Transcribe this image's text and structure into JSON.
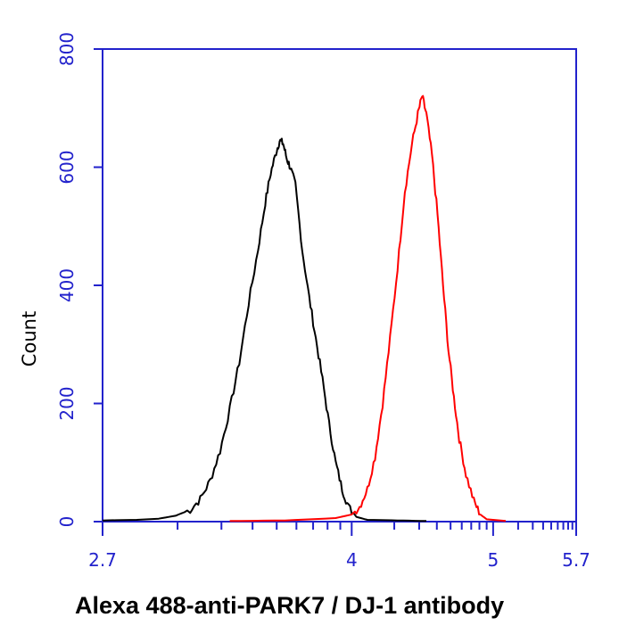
{
  "chart_data": {
    "type": "line",
    "title": "",
    "xlabel": "Alexa 488-anti-PARK7 / DJ-1 antibody",
    "ylabel": "Count",
    "x_scale": "log",
    "xlim": [
      2.7,
      5.7
    ],
    "ylim": [
      0,
      800
    ],
    "x_ticks": [
      {
        "value": 2.7,
        "label": "2.7"
      },
      {
        "value": 4,
        "label": "4"
      },
      {
        "value": 5,
        "label": "5"
      },
      {
        "value": 5.7,
        "label": "5.7"
      }
    ],
    "y_ticks": [
      0,
      200,
      400,
      600,
      800
    ],
    "grid": false,
    "legend": "none",
    "axis_color": "#2222cc",
    "series": [
      {
        "color": "#000000",
        "points": [
          [
            2.7,
            2
          ],
          [
            2.85,
            3
          ],
          [
            2.95,
            5
          ],
          [
            3.03,
            10
          ],
          [
            3.1,
            20
          ],
          [
            3.15,
            38
          ],
          [
            3.2,
            70
          ],
          [
            3.25,
            120
          ],
          [
            3.3,
            190
          ],
          [
            3.35,
            270
          ],
          [
            3.4,
            370
          ],
          [
            3.45,
            460
          ],
          [
            3.49,
            540
          ],
          [
            3.52,
            590
          ],
          [
            3.55,
            625
          ],
          [
            3.57,
            645
          ],
          [
            3.59,
            640
          ],
          [
            3.61,
            615
          ],
          [
            3.63,
            600
          ],
          [
            3.66,
            570
          ],
          [
            3.7,
            460
          ],
          [
            3.74,
            380
          ],
          [
            3.78,
            310
          ],
          [
            3.82,
            240
          ],
          [
            3.86,
            165
          ],
          [
            3.9,
            100
          ],
          [
            3.94,
            55
          ],
          [
            3.98,
            25
          ],
          [
            4.03,
            8
          ],
          [
            4.1,
            3
          ],
          [
            4.3,
            2
          ],
          [
            4.5,
            1
          ]
        ]
      },
      {
        "color": "#ff0000",
        "points": [
          [
            3.3,
            1
          ],
          [
            3.6,
            2
          ],
          [
            3.9,
            6
          ],
          [
            4.0,
            12
          ],
          [
            4.05,
            25
          ],
          [
            4.1,
            55
          ],
          [
            4.15,
            110
          ],
          [
            4.2,
            200
          ],
          [
            4.25,
            310
          ],
          [
            4.3,
            430
          ],
          [
            4.35,
            560
          ],
          [
            4.4,
            640
          ],
          [
            4.44,
            690
          ],
          [
            4.47,
            720
          ],
          [
            4.5,
            690
          ],
          [
            4.54,
            620
          ],
          [
            4.58,
            520
          ],
          [
            4.62,
            400
          ],
          [
            4.66,
            290
          ],
          [
            4.7,
            210
          ],
          [
            4.74,
            140
          ],
          [
            4.79,
            80
          ],
          [
            4.85,
            35
          ],
          [
            4.9,
            12
          ],
          [
            4.95,
            4
          ],
          [
            5.1,
            1
          ]
        ]
      }
    ]
  }
}
